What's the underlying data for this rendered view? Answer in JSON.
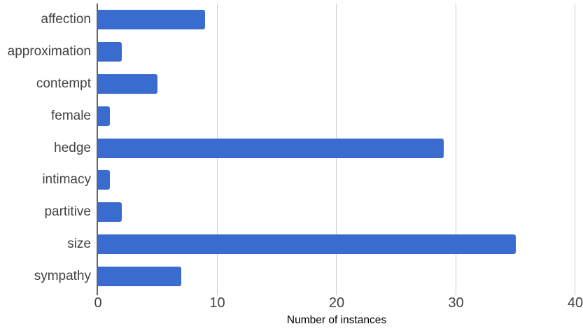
{
  "chart_data": {
    "type": "bar",
    "orientation": "horizontal",
    "title": "",
    "xlabel": "Number of instances",
    "ylabel": "",
    "categories": [
      "affection",
      "approximation",
      "contempt",
      "female",
      "hedge",
      "intimacy",
      "partitive",
      "size",
      "sympathy"
    ],
    "values": [
      9,
      2,
      5,
      1,
      29,
      1,
      2,
      35,
      7
    ],
    "xlim": [
      0,
      40
    ],
    "xticks": [
      0,
      10,
      20,
      30,
      40
    ],
    "grid": "vertical-gridlines-on",
    "legend": "none"
  },
  "colors": {
    "bar": "#3a6bcf",
    "gridline": "#cccccc",
    "axis_line": "#666666",
    "tick_label": "#424242",
    "axis_title": "#000000",
    "background": "#ffffff"
  }
}
